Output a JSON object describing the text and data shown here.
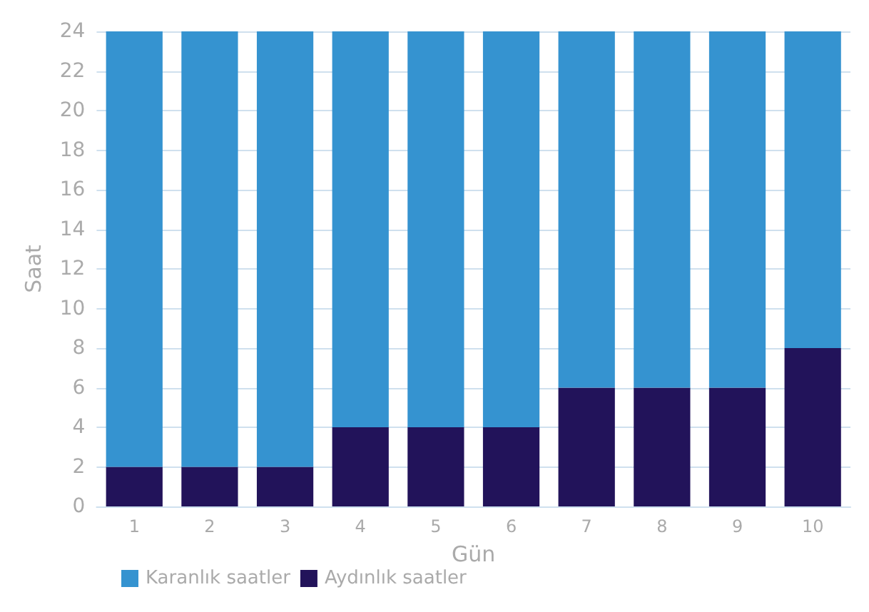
{
  "chart_data": {
    "type": "bar",
    "stacked": true,
    "xlabel": "Gün",
    "ylabel": "Saat",
    "categories": [
      "1",
      "2",
      "3",
      "4",
      "5",
      "6",
      "7",
      "8",
      "9",
      "10"
    ],
    "series": [
      {
        "name": "Aydınlık saatler",
        "color": "#22135a",
        "values": [
          2,
          2,
          2,
          4,
          4,
          4,
          6,
          6,
          6,
          8
        ]
      },
      {
        "name": "Karanlık saatler",
        "color": "#3593d0",
        "values": [
          22,
          22,
          22,
          20,
          20,
          20,
          18,
          18,
          18,
          16
        ]
      }
    ],
    "ylim": [
      0,
      24
    ],
    "yticks": [
      0,
      2,
      4,
      6,
      8,
      10,
      12,
      14,
      16,
      18,
      20,
      22,
      24
    ],
    "grid": "y",
    "legend": "bottom left"
  }
}
